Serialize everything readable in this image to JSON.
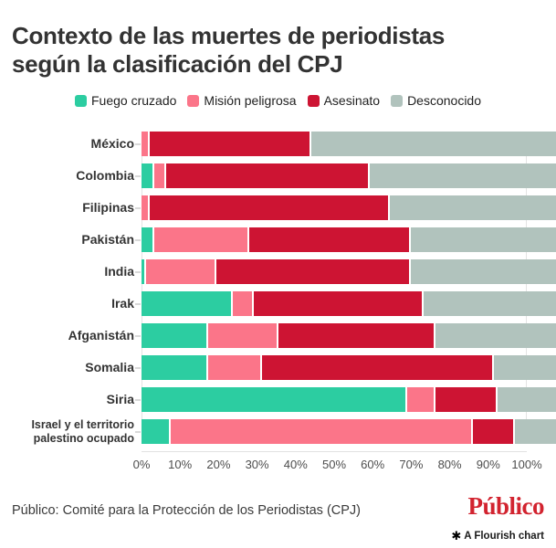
{
  "header": {
    "title_lines": [
      "Contexto de las muertes de periodistas",
      "según la clasificación del CPJ"
    ]
  },
  "chart_data": {
    "type": "bar",
    "variant": "horizontal_stacked_100",
    "unit": "%",
    "title": "Contexto de las muertes de periodistas según la clasificación del CPJ",
    "categories": [
      "México",
      "Colombia",
      "Filipinas",
      "Pakistán",
      "India",
      "Irak",
      "Afganistán",
      "Somalia",
      "Siria",
      "Israel y el territorio\npalestino ocupado"
    ],
    "series": [
      {
        "name": "Fuego cruzado",
        "color": "#2ccda1",
        "values": [
          0,
          3,
          0,
          3,
          1,
          22,
          16,
          16,
          64,
          7
        ]
      },
      {
        "name": "Misión peligrosa",
        "color": "#fb7589",
        "values": [
          2,
          3,
          2,
          23,
          17,
          5,
          17,
          13,
          7,
          73
        ]
      },
      {
        "name": "Asesinato",
        "color": "#cd1433",
        "values": [
          39,
          49,
          58,
          39,
          47,
          41,
          38,
          56,
          15,
          10
        ]
      },
      {
        "name": "Desconocido",
        "color": "#b1c3bd",
        "values": [
          59,
          45,
          40,
          35,
          35,
          32,
          29,
          15,
          14,
          10
        ]
      }
    ],
    "x_ticks": [
      "0%",
      "10%",
      "20%",
      "30%",
      "40%",
      "50%",
      "60%",
      "70%",
      "80%",
      "90%",
      "100%"
    ],
    "xlim": [
      0,
      100
    ],
    "legend_position": "top",
    "grid": false
  },
  "footer": {
    "source": "Público: Comité para la Protección de los Periodistas (CPJ)",
    "brand_logo": "Público",
    "attribution": "A Flourish chart",
    "asterisk_icon": "✱"
  },
  "colors": {
    "fuego_cruzado": "#2ccda1",
    "mision_peligrosa": "#fb7589",
    "asesinato": "#cd1433",
    "desconocido": "#b1c3bd",
    "brand_red": "#d2232f"
  }
}
